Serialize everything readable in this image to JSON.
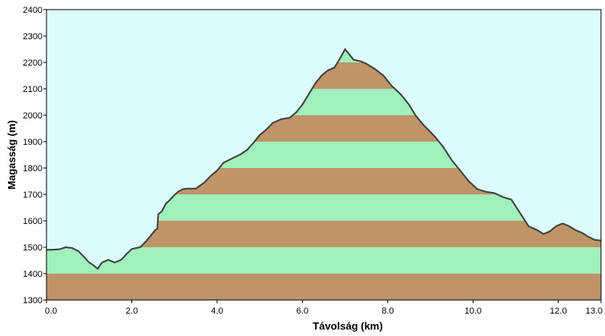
{
  "chart_data": {
    "type": "area",
    "xlabel": "Távolság  (km)",
    "ylabel": "Magasság (m)",
    "xlim": [
      0,
      13
    ],
    "ylim": [
      1300,
      2400
    ],
    "xticks": [
      0,
      2,
      4,
      6,
      8,
      10,
      12,
      13
    ],
    "xtick_labels": [
      "0.0",
      "2.0",
      "4.0",
      "6.0",
      "8.0",
      "10.0",
      "12.0",
      "13.0"
    ],
    "yticks": [
      1300,
      1400,
      1500,
      1600,
      1700,
      1800,
      1900,
      2000,
      2100,
      2200,
      2300,
      2400
    ],
    "ytick_labels": [
      "1300",
      "1400",
      "1500",
      "1600",
      "1700",
      "1800",
      "1900",
      "2000",
      "2100",
      "2200",
      "2300",
      "2400"
    ],
    "band_step": 100,
    "colors": {
      "sky": "#dcfcfc",
      "band_dark": "#bf9468",
      "band_light": "#a0f0bc",
      "profile_line": "#404040"
    },
    "x": [
      0.0,
      0.1,
      0.3,
      0.45,
      0.6,
      0.75,
      0.9,
      1.0,
      1.1,
      1.2,
      1.3,
      1.45,
      1.6,
      1.75,
      1.9,
      2.0,
      2.2,
      2.35,
      2.45,
      2.55,
      2.6,
      2.62,
      2.7,
      2.8,
      2.9,
      3.0,
      3.1,
      3.2,
      3.3,
      3.5,
      3.7,
      3.85,
      4.0,
      4.15,
      4.25,
      4.4,
      4.55,
      4.7,
      4.85,
      5.0,
      5.15,
      5.3,
      5.5,
      5.7,
      5.85,
      6.0,
      6.15,
      6.3,
      6.45,
      6.6,
      6.75,
      6.9,
      7.0,
      7.1,
      7.2,
      7.35,
      7.5,
      7.7,
      7.9,
      8.1,
      8.3,
      8.5,
      8.65,
      8.8,
      8.95,
      9.1,
      9.3,
      9.5,
      9.7,
      9.9,
      10.1,
      10.3,
      10.5,
      10.7,
      10.9,
      11.1,
      11.3,
      11.5,
      11.65,
      11.8,
      11.95,
      12.1,
      12.25,
      12.4,
      12.55,
      12.7,
      12.85,
      13.0
    ],
    "values": [
      1490,
      1490,
      1492,
      1500,
      1497,
      1485,
      1460,
      1442,
      1432,
      1418,
      1442,
      1452,
      1442,
      1452,
      1478,
      1493,
      1500,
      1525,
      1545,
      1565,
      1570,
      1625,
      1635,
      1665,
      1680,
      1698,
      1712,
      1720,
      1722,
      1722,
      1745,
      1770,
      1790,
      1820,
      1828,
      1840,
      1852,
      1868,
      1895,
      1925,
      1945,
      1970,
      1985,
      1990,
      2010,
      2040,
      2080,
      2120,
      2150,
      2170,
      2180,
      2220,
      2250,
      2230,
      2210,
      2205,
      2195,
      2175,
      2150,
      2110,
      2080,
      2040,
      2000,
      1970,
      1945,
      1920,
      1880,
      1830,
      1790,
      1750,
      1720,
      1710,
      1705,
      1690,
      1680,
      1630,
      1580,
      1565,
      1550,
      1560,
      1580,
      1590,
      1580,
      1565,
      1555,
      1540,
      1528,
      1525
    ]
  }
}
